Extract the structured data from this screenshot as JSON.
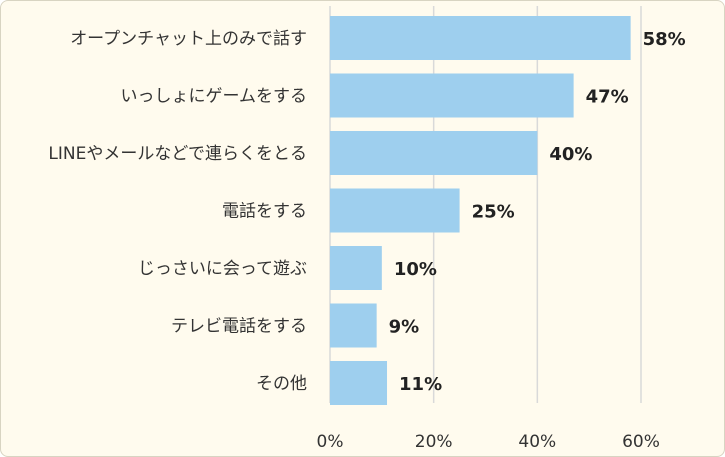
{
  "chart_data": {
    "type": "bar",
    "orientation": "horizontal",
    "categories": [
      "オープンチャット上のみで話す",
      "いっしょにゲームをする",
      "LINEやメールなどで連らくをとる",
      "電話をする",
      "じっさいに会って遊ぶ",
      "テレビ電話をする",
      "その他"
    ],
    "values": [
      58,
      47,
      40,
      25,
      10,
      9,
      11
    ],
    "value_labels": [
      "58%",
      "47%",
      "40%",
      "25%",
      "10%",
      "9%",
      "11%"
    ],
    "xlim": [
      0,
      60
    ],
    "ticks": [
      0,
      20,
      40,
      60
    ],
    "tick_labels": [
      "0%",
      "20%",
      "40%",
      "60%"
    ],
    "grid": true,
    "legend": "none",
    "bar_color": "#9ecfee",
    "background_color": "#fffbee"
  }
}
